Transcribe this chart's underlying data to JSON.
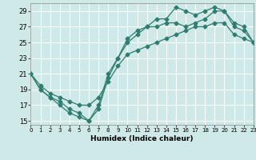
{
  "bg_color": "#cfe8e8",
  "grid_color": "#b0d0d0",
  "line_color": "#2e7d6e",
  "line1_x": [
    0,
    1,
    2,
    3,
    4,
    5,
    6,
    7,
    8,
    9,
    10,
    11,
    12,
    13,
    14,
    15,
    16,
    17,
    18,
    19,
    20,
    21,
    22,
    23
  ],
  "line1_y": [
    21,
    19,
    18,
    17.5,
    16.5,
    16,
    15,
    17,
    21,
    23,
    25.5,
    26.5,
    27,
    28,
    28,
    29.5,
    29,
    28.5,
    29,
    29.5,
    29,
    27,
    26.5,
    25
  ],
  "line2_x": [
    0,
    1,
    2,
    3,
    4,
    5,
    6,
    7,
    8,
    9,
    10,
    11,
    12,
    13,
    14,
    15,
    16,
    17,
    18,
    19,
    20,
    21,
    22,
    23
  ],
  "line2_y": [
    21,
    19,
    18,
    17,
    16,
    15.5,
    15,
    16.5,
    20.5,
    23,
    25,
    26,
    27,
    27,
    27.5,
    27.5,
    27,
    27.5,
    28,
    29,
    29,
    27.5,
    27,
    25
  ],
  "line3_x": [
    0,
    1,
    2,
    3,
    4,
    5,
    6,
    7,
    8,
    9,
    10,
    11,
    12,
    13,
    14,
    15,
    16,
    17,
    18,
    19,
    20,
    21,
    22,
    23
  ],
  "line3_y": [
    21,
    19.5,
    18.5,
    18,
    17.5,
    17,
    17,
    18,
    20,
    22,
    23.5,
    24,
    24.5,
    25,
    25.5,
    26,
    26.5,
    27,
    27,
    27.5,
    27.5,
    26,
    25.5,
    25
  ],
  "xlim": [
    0,
    23
  ],
  "ylim": [
    14.5,
    30
  ],
  "yticks": [
    15,
    17,
    19,
    21,
    23,
    25,
    27,
    29
  ],
  "xticks": [
    0,
    1,
    2,
    3,
    4,
    5,
    6,
    7,
    8,
    9,
    10,
    11,
    12,
    13,
    14,
    15,
    16,
    17,
    18,
    19,
    20,
    21,
    22,
    23
  ],
  "xlabel": "Humidex (Indice chaleur)",
  "marker": "D",
  "marker_size": 2.5
}
